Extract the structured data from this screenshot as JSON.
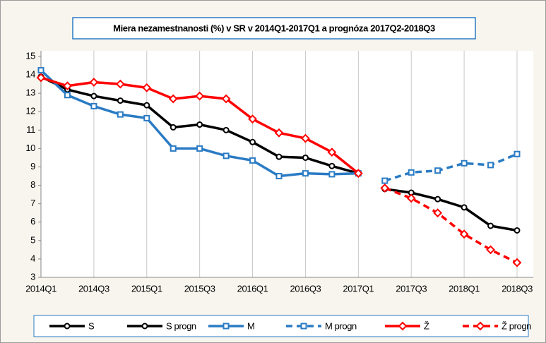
{
  "chart_data": {
    "type": "line",
    "title": "Miera nezamestnanosti (%) v SR v 2014Q1-2017Q1 a prognóza 2017Q2-2018Q3",
    "categories": [
      "2014Q1",
      null,
      "2014Q3",
      null,
      "2015Q1",
      null,
      "2015Q3",
      null,
      "2016Q1",
      null,
      "2016Q3",
      null,
      "2017Q1",
      null,
      "2017Q3",
      null,
      "2018Q1",
      null,
      "2018Q3"
    ],
    "ylim": [
      3,
      15
    ],
    "yticks": [
      3,
      4,
      5,
      6,
      7,
      8,
      9,
      10,
      11,
      12,
      13,
      14,
      15
    ],
    "grid": "vertical",
    "legend": "bottom",
    "series": [
      {
        "name": "S",
        "color": "#000000",
        "dashed": false,
        "marker": "circle",
        "values": [
          13.9,
          13.2,
          12.85,
          12.6,
          12.35,
          11.15,
          11.3,
          11.0,
          10.35,
          9.55,
          9.5,
          9.05,
          8.65,
          null,
          null,
          null,
          null,
          null,
          null
        ]
      },
      {
        "name": "S progn",
        "color": "#000000",
        "dashed": false,
        "marker": "circle",
        "values": [
          null,
          null,
          null,
          null,
          null,
          null,
          null,
          null,
          null,
          null,
          null,
          null,
          null,
          7.8,
          7.6,
          7.25,
          6.8,
          5.8,
          5.55
        ]
      },
      {
        "name": "M",
        "color": "#2a7bc4",
        "dashed": false,
        "marker": "square",
        "values": [
          14.25,
          12.9,
          12.3,
          11.85,
          11.65,
          10.0,
          10.0,
          9.6,
          9.35,
          8.5,
          8.65,
          8.6,
          8.65,
          null,
          null,
          null,
          null,
          null,
          null
        ]
      },
      {
        "name": "M progn",
        "color": "#2a7bc4",
        "dashed": true,
        "marker": "square",
        "values": [
          null,
          null,
          null,
          null,
          null,
          null,
          null,
          null,
          null,
          null,
          null,
          null,
          null,
          8.25,
          8.7,
          8.8,
          9.2,
          9.1,
          9.7
        ]
      },
      {
        "name": "Ž",
        "color": "#ff0000",
        "dashed": false,
        "marker": "diamond",
        "values": [
          13.85,
          13.4,
          13.6,
          13.5,
          13.3,
          12.7,
          12.85,
          12.7,
          11.6,
          10.85,
          10.55,
          9.8,
          8.65,
          null,
          null,
          null,
          null,
          null,
          null
        ]
      },
      {
        "name": "Ž progn",
        "color": "#ff0000",
        "dashed": true,
        "marker": "diamond",
        "values": [
          null,
          null,
          null,
          null,
          null,
          null,
          null,
          null,
          null,
          null,
          null,
          null,
          null,
          7.85,
          7.3,
          6.5,
          5.35,
          4.5,
          3.8
        ]
      }
    ]
  }
}
